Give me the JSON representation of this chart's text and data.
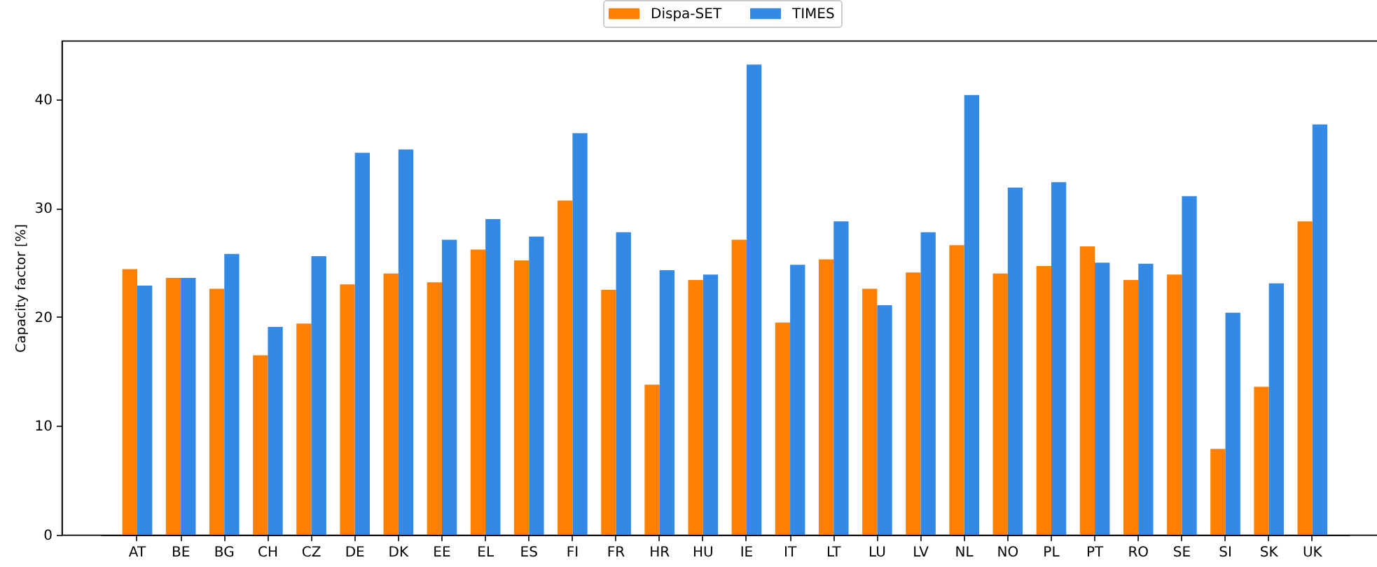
{
  "chart_data": {
    "type": "bar",
    "ylabel": "Capacity factor [%]",
    "categories": [
      "AT",
      "BE",
      "BG",
      "CH",
      "CZ",
      "DE",
      "DK",
      "EE",
      "EL",
      "ES",
      "FI",
      "FR",
      "HR",
      "HU",
      "IE",
      "IT",
      "LT",
      "LU",
      "LV",
      "NL",
      "NO",
      "PL",
      "PT",
      "RO",
      "SE",
      "SI",
      "SK",
      "UK"
    ],
    "series": [
      {
        "name": "Dispa-SET",
        "color": "#ff8000",
        "values": [
          24.4,
          23.6,
          22.6,
          16.5,
          19.4,
          23.0,
          24.0,
          23.2,
          26.2,
          25.2,
          30.7,
          22.5,
          13.8,
          23.4,
          27.1,
          19.5,
          25.3,
          22.6,
          24.1,
          26.6,
          24.0,
          24.7,
          26.5,
          23.4,
          23.9,
          7.9,
          13.6,
          28.8
        ]
      },
      {
        "name": "TIMES",
        "color": "#328ae6",
        "values": [
          22.9,
          23.6,
          25.8,
          19.1,
          25.6,
          35.1,
          35.4,
          27.1,
          29.0,
          27.4,
          36.9,
          27.8,
          24.3,
          23.9,
          43.2,
          24.8,
          28.8,
          21.1,
          27.8,
          40.4,
          31.9,
          32.4,
          25.0,
          24.9,
          31.1,
          20.4,
          23.1,
          37.7
        ]
      }
    ],
    "ylim": [
      0,
      45.4
    ],
    "yticks": [
      0,
      10,
      20,
      30,
      40
    ],
    "legend": "top"
  }
}
